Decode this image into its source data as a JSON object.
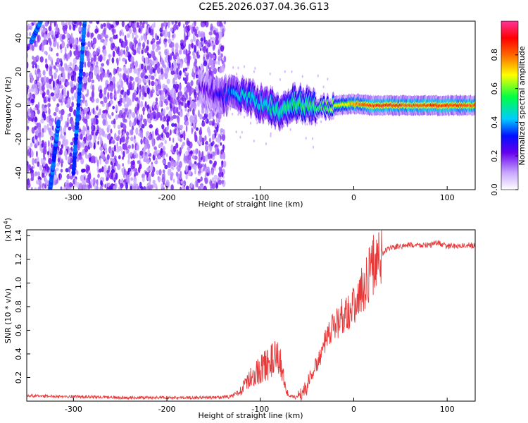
{
  "title": "C2E5.2026.037.04.36.G13",
  "chart_data": [
    {
      "type": "heatmap",
      "xlabel": "Height of straight line (km)",
      "ylabel": "Frequency (Hz)",
      "xlim": [
        -350,
        130
      ],
      "ylim": [
        -50,
        50
      ],
      "xticks": [
        -300,
        -200,
        -100,
        0,
        100
      ],
      "xtick_labels": [
        "-300",
        "-200",
        "-100",
        "0",
        "100"
      ],
      "yticks": [
        -40,
        -20,
        0,
        20,
        40
      ],
      "ytick_labels": [
        "-40",
        "-20",
        "0",
        "20",
        "40"
      ],
      "colorbar": {
        "label": "Normalized spectral amplitude",
        "range": [
          0,
          1
        ],
        "ticks": [
          0.0,
          0.2,
          0.4,
          0.6,
          0.8
        ],
        "tick_labels": [
          "0.0",
          "0.2",
          "0.4",
          "0.6",
          "0.8"
        ]
      },
      "noise_region": {
        "x_from": -350,
        "x_to": -138,
        "level": 0.12
      },
      "diagonal_tracks": [
        {
          "x": [
            -300,
            -288
          ],
          "y": [
            -40,
            50
          ]
        },
        {
          "x": [
            -325,
            -316
          ],
          "y": [
            -50,
            -10
          ]
        },
        {
          "x": [
            -345,
            -335
          ],
          "y": [
            38,
            50
          ]
        }
      ],
      "ridge": {
        "x": [
          -160,
          -140,
          -120,
          -100,
          -80,
          -60,
          -40,
          -20,
          0,
          20,
          40,
          60,
          80,
          100,
          130
        ],
        "y": [
          10,
          6,
          6,
          2,
          -3,
          2,
          -1,
          0,
          1,
          0,
          0,
          0,
          0,
          0,
          0
        ],
        "amplitude": [
          0.2,
          0.3,
          0.45,
          0.45,
          0.5,
          0.55,
          0.55,
          0.65,
          0.75,
          0.85,
          0.85,
          0.8,
          0.85,
          0.85,
          0.8
        ]
      },
      "grid": false
    },
    {
      "type": "line",
      "xlabel": "Height of straight line (km)",
      "ylabel": "SNR (10 * v/v)",
      "y_multiplier": "(x10",
      "y_multiplier_exp": "4",
      "y_multiplier_close": ")",
      "xlim": [
        -350,
        130
      ],
      "ylim": [
        0,
        14500
      ],
      "xticks": [
        -300,
        -200,
        -100,
        0,
        100
      ],
      "xtick_labels": [
        "-300",
        "-200",
        "-100",
        "0",
        "100"
      ],
      "yticks": [
        2000,
        4000,
        6000,
        8000,
        10000,
        12000,
        14000
      ],
      "ytick_labels": [
        "0.2",
        "0.4",
        "0.6",
        "0.8",
        "1.0",
        "1.2",
        "1.4"
      ],
      "series": [
        {
          "color": "#e8393a",
          "x": [
            -350,
            -300,
            -250,
            -200,
            -150,
            -130,
            -120,
            -110,
            -100,
            -90,
            -80,
            -75,
            -70,
            -60,
            -50,
            -45,
            -40,
            -30,
            -20,
            -10,
            0,
            10,
            20,
            30,
            40,
            60,
            80,
            90,
            100,
            130
          ],
          "y": [
            450,
            400,
            300,
            300,
            300,
            400,
            1000,
            2000,
            2700,
            3300,
            3700,
            2000,
            400,
            300,
            1200,
            2400,
            3000,
            5000,
            6500,
            7500,
            8000,
            9500,
            11500,
            12500,
            13000,
            13200,
            13200,
            13400,
            13100,
            13200
          ]
        }
      ],
      "grid": false
    }
  ]
}
